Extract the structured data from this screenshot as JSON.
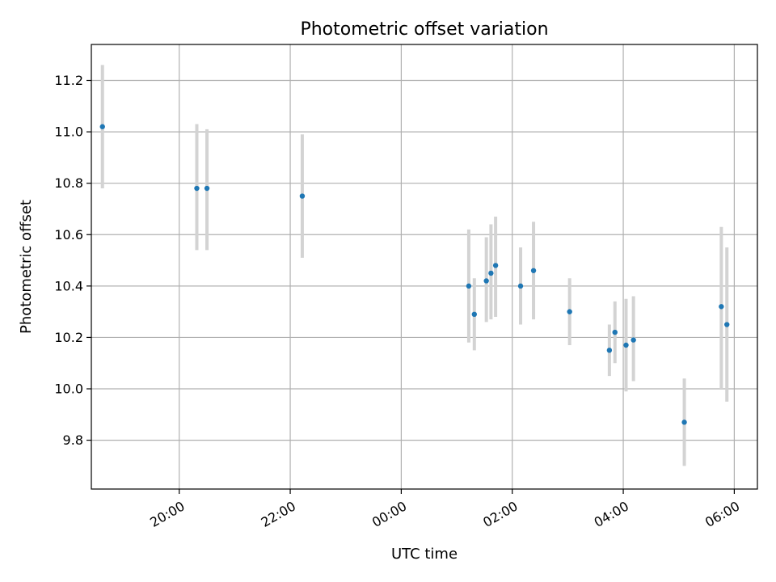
{
  "chart_data": {
    "type": "scatter",
    "title": "Photometric offset variation",
    "xlabel": "UTC time",
    "ylabel": "Photometric offset",
    "x_axis": "time",
    "xlim": [
      "18:25",
      "06:25"
    ],
    "ylim": [
      9.61,
      11.34
    ],
    "x_ticks": [
      {
        "value": "20:00",
        "label": "20:00"
      },
      {
        "value": "22:00",
        "label": "22:00"
      },
      {
        "value": "00:00",
        "label": "00:00"
      },
      {
        "value": "02:00",
        "label": "02:00"
      },
      {
        "value": "04:00",
        "label": "04:00"
      },
      {
        "value": "06:00",
        "label": "06:00"
      }
    ],
    "y_ticks": [
      9.8,
      10.0,
      10.2,
      10.4,
      10.6,
      10.8,
      11.0,
      11.2
    ],
    "y_tick_labels": [
      "9.8",
      "10.0",
      "10.2",
      "10.4",
      "10.6",
      "10.8",
      "11.0",
      "11.2"
    ],
    "grid": true,
    "marker_color": "#1f77b4",
    "errorbar_color": "#d3d3d3",
    "points": [
      {
        "x": "18:37",
        "y": 11.02,
        "ymin": 10.78,
        "ymax": 11.26
      },
      {
        "x": "20:19",
        "y": 10.78,
        "ymin": 10.54,
        "ymax": 11.03
      },
      {
        "x": "20:30",
        "y": 10.78,
        "ymin": 10.54,
        "ymax": 11.01
      },
      {
        "x": "22:13",
        "y": 10.75,
        "ymin": 10.51,
        "ymax": 10.99
      },
      {
        "x": "01:13",
        "y": 10.4,
        "ymin": 10.18,
        "ymax": 10.62
      },
      {
        "x": "01:19",
        "y": 10.29,
        "ymin": 10.15,
        "ymax": 10.43
      },
      {
        "x": "01:32",
        "y": 10.42,
        "ymin": 10.26,
        "ymax": 10.59
      },
      {
        "x": "01:37",
        "y": 10.45,
        "ymin": 10.27,
        "ymax": 10.64
      },
      {
        "x": "01:42",
        "y": 10.48,
        "ymin": 10.28,
        "ymax": 10.67
      },
      {
        "x": "02:09",
        "y": 10.4,
        "ymin": 10.25,
        "ymax": 10.55
      },
      {
        "x": "02:23",
        "y": 10.46,
        "ymin": 10.27,
        "ymax": 10.65
      },
      {
        "x": "03:02",
        "y": 10.3,
        "ymin": 10.17,
        "ymax": 10.43
      },
      {
        "x": "03:45",
        "y": 10.15,
        "ymin": 10.05,
        "ymax": 10.25
      },
      {
        "x": "03:51",
        "y": 10.22,
        "ymin": 10.1,
        "ymax": 10.34
      },
      {
        "x": "04:03",
        "y": 10.17,
        "ymin": 9.99,
        "ymax": 10.35
      },
      {
        "x": "04:11",
        "y": 10.19,
        "ymin": 10.03,
        "ymax": 10.36
      },
      {
        "x": "05:06",
        "y": 9.87,
        "ymin": 9.7,
        "ymax": 10.04
      },
      {
        "x": "05:46",
        "y": 10.32,
        "ymin": 10.0,
        "ymax": 10.63
      },
      {
        "x": "05:52",
        "y": 10.25,
        "ymin": 9.95,
        "ymax": 10.55
      }
    ]
  }
}
